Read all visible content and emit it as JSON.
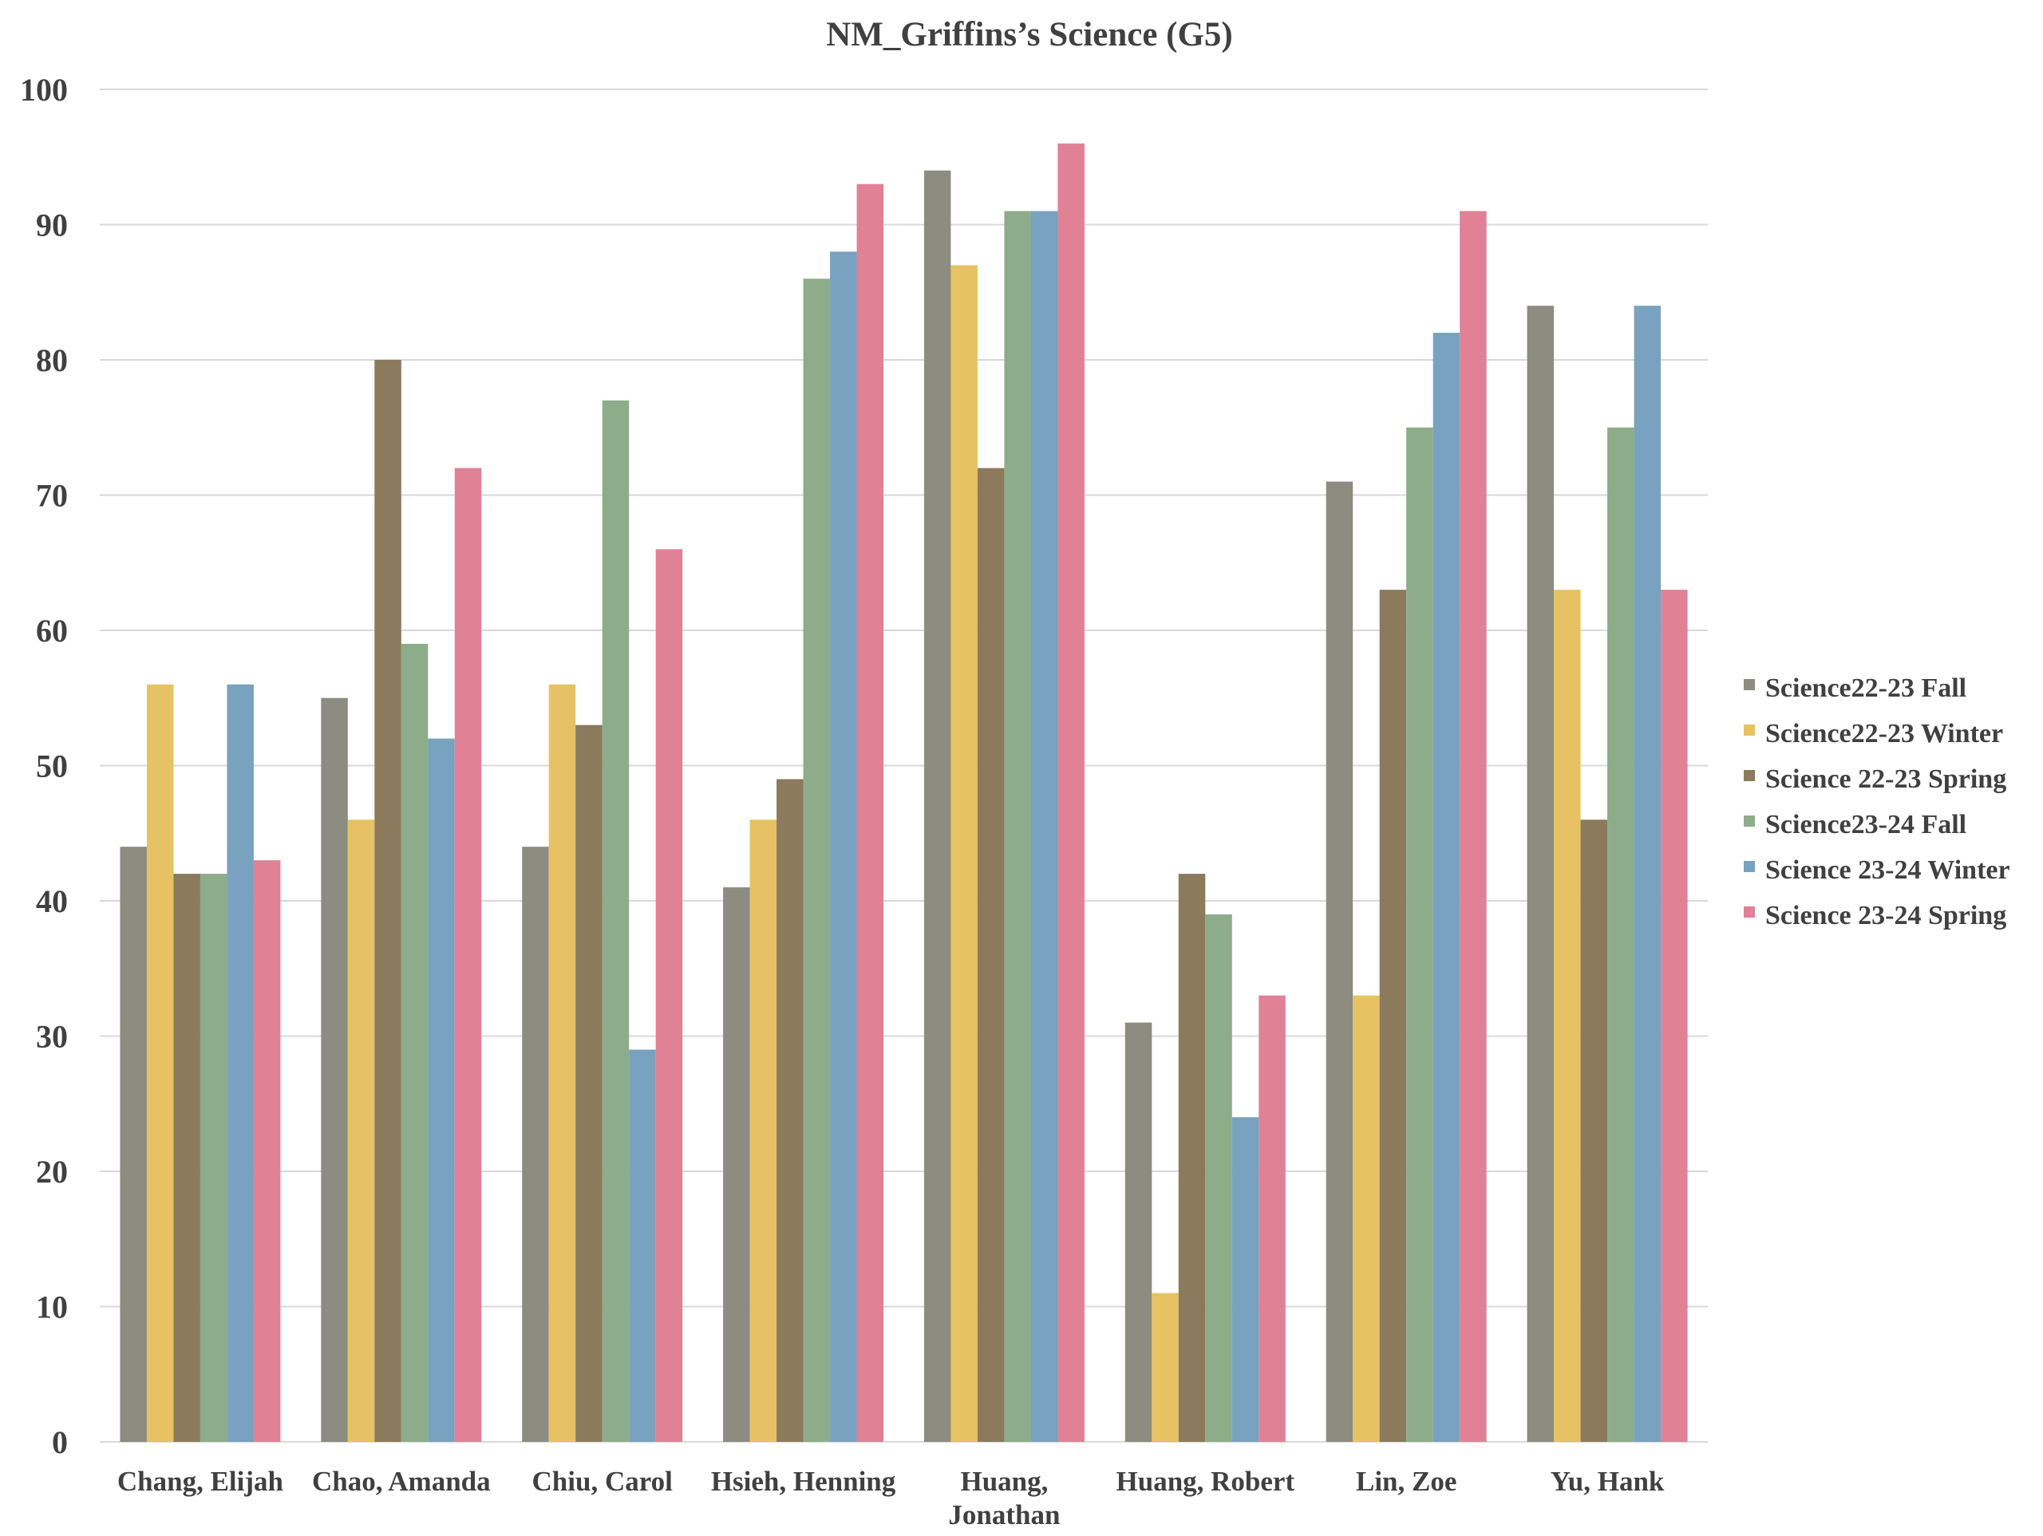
{
  "chart_data": {
    "type": "bar",
    "title": "NM_Griffins’s Science (G5)",
    "xlabel": "",
    "ylabel": "",
    "ylim": [
      0,
      100
    ],
    "yticks": [
      0,
      10,
      20,
      30,
      40,
      50,
      60,
      70,
      80,
      90,
      100
    ],
    "grid": true,
    "legend_position": "right",
    "categories": [
      "Chang, Elijah",
      "Chao, Amanda",
      "Chiu, Carol",
      "Hsieh, Henning",
      "Huang, Jonathan",
      "Huang, Robert",
      "Lin, Zoe",
      "Yu, Hank"
    ],
    "category_lines": [
      [
        "Chang, Elijah"
      ],
      [
        "Chao, Amanda"
      ],
      [
        "Chiu, Carol"
      ],
      [
        "Hsieh, Henning"
      ],
      [
        "Huang,",
        "Jonathan"
      ],
      [
        "Huang, Robert"
      ],
      [
        "Lin, Zoe"
      ],
      [
        "Yu, Hank"
      ]
    ],
    "series": [
      {
        "name": "Science22-23 Fall",
        "color": "#8C8C80",
        "values": [
          44,
          55,
          44,
          41,
          94,
          31,
          71,
          84
        ]
      },
      {
        "name": "Science22-23 Winter",
        "color": "#E6C264",
        "values": [
          56,
          46,
          56,
          46,
          87,
          11,
          33,
          63
        ]
      },
      {
        "name": "Science 22-23 Spring",
        "color": "#8B7A5C",
        "values": [
          42,
          80,
          53,
          49,
          72,
          42,
          63,
          46
        ]
      },
      {
        "name": "Science23-24 Fall",
        "color": "#8DAC8A",
        "values": [
          42,
          59,
          77,
          86,
          91,
          39,
          75,
          75
        ]
      },
      {
        "name": "Science 23-24 Winter",
        "color": "#78A2BF",
        "values": [
          56,
          52,
          29,
          88,
          91,
          24,
          82,
          84
        ]
      },
      {
        "name": "Science 23-24 Spring",
        "color": "#E08196",
        "values": [
          43,
          72,
          66,
          93,
          96,
          33,
          91,
          63
        ]
      }
    ]
  }
}
